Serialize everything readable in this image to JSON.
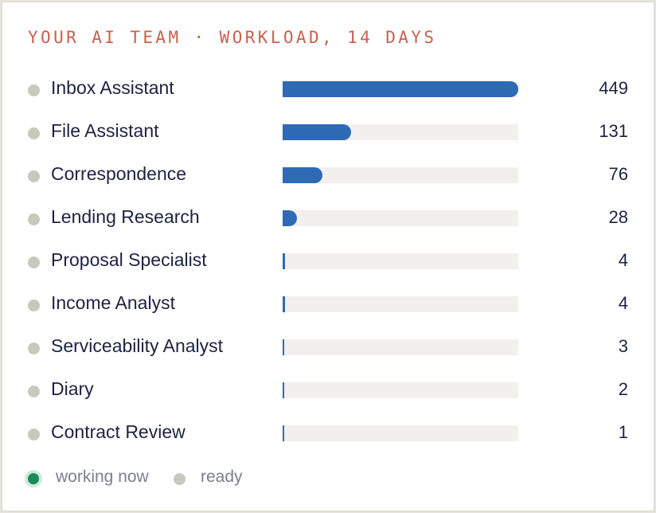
{
  "card": {
    "title": "YOUR AI TEAM · WORKLOAD, 14 DAYS"
  },
  "colors": {
    "title": "#c8614e",
    "bar_fill": "#2e6ab5",
    "bar_track": "#f1f0ec",
    "status_ready": "#c9c8bd",
    "status_working": "#1b8a5e",
    "text": "#1c2340"
  },
  "agents": [
    {
      "name": "Inbox Assistant",
      "count": 449,
      "status": "ready"
    },
    {
      "name": "File Assistant",
      "count": 131,
      "status": "ready"
    },
    {
      "name": "Correspondence",
      "count": 76,
      "status": "ready"
    },
    {
      "name": "Lending Research",
      "count": 28,
      "status": "ready"
    },
    {
      "name": "Proposal Specialist",
      "count": 4,
      "status": "ready"
    },
    {
      "name": "Income Analyst",
      "count": 4,
      "status": "ready"
    },
    {
      "name": "Serviceability Analyst",
      "count": 3,
      "status": "ready"
    },
    {
      "name": "Diary",
      "count": 2,
      "status": "ready"
    },
    {
      "name": "Contract Review",
      "count": 1,
      "status": "ready"
    }
  ],
  "legend": {
    "working_label": "working now",
    "ready_label": "ready"
  }
}
